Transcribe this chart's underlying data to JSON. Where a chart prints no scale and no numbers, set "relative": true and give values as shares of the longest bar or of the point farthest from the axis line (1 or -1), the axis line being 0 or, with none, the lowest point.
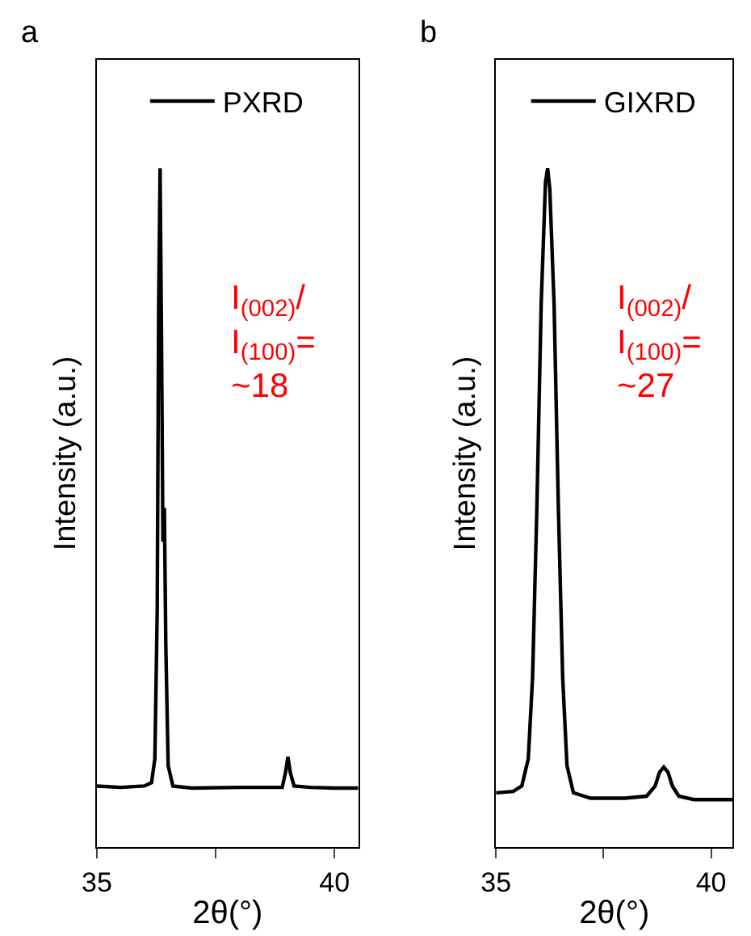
{
  "chart_data": [
    {
      "type": "line",
      "title": "a",
      "xlabel": "2θ(°)",
      "ylabel": "Intensity (a.u.)",
      "relative": true,
      "legend": "top",
      "marker": "none",
      "line_style": "solid",
      "xlim": [
        35,
        40.5
      ],
      "xticks": [
        35,
        {
          "value": 37.5,
          "label": null
        },
        40
      ],
      "annotations": [
        "I$_{(002)}$/\nI$_{(100)}$=\n~18"
      ],
      "x": [
        35.0,
        35.5,
        36.0,
        36.15,
        36.22,
        36.27,
        36.3,
        36.33,
        36.36,
        36.39,
        36.42,
        36.45,
        36.5,
        36.6,
        37.0,
        38.0,
        38.9,
        38.97,
        39.02,
        39.07,
        39.15,
        39.5,
        40.0,
        40.5
      ],
      "series": [
        {
          "name": "PXRD",
          "color": "#000000",
          "values": [
            0.09,
            0.088,
            0.09,
            0.095,
            0.13,
            0.35,
            0.8,
            1.0,
            0.75,
            0.45,
            0.5,
            0.3,
            0.12,
            0.09,
            0.087,
            0.088,
            0.088,
            0.11,
            0.133,
            0.11,
            0.09,
            0.088,
            0.087,
            0.087
          ]
        }
      ]
    },
    {
      "type": "line",
      "title": "b",
      "xlabel": "2θ(°)",
      "ylabel": "Intensity (a.u.)",
      "relative": true,
      "legend": "top",
      "marker": "none",
      "line_style": "solid",
      "xlim": [
        35,
        40.5
      ],
      "xticks": [
        35,
        {
          "value": 37.5,
          "label": null
        },
        40
      ],
      "annotations": [
        "I$_{(002)}$/\nI$_{(100)}$=\n~27"
      ],
      "x": [
        35.0,
        35.4,
        35.6,
        35.75,
        35.85,
        35.95,
        36.05,
        36.15,
        36.2,
        36.25,
        36.35,
        36.45,
        36.55,
        36.65,
        36.8,
        37.2,
        38.0,
        38.5,
        38.7,
        38.8,
        38.9,
        39.0,
        39.1,
        39.25,
        39.6,
        40.0,
        40.5
      ],
      "series": [
        {
          "name": "GIXRD",
          "color": "#000000",
          "values": [
            0.08,
            0.082,
            0.09,
            0.13,
            0.25,
            0.5,
            0.8,
            0.98,
            1.0,
            0.97,
            0.8,
            0.5,
            0.25,
            0.12,
            0.08,
            0.072,
            0.072,
            0.075,
            0.09,
            0.11,
            0.118,
            0.11,
            0.09,
            0.075,
            0.07,
            0.07,
            0.07
          ]
        }
      ]
    }
  ]
}
